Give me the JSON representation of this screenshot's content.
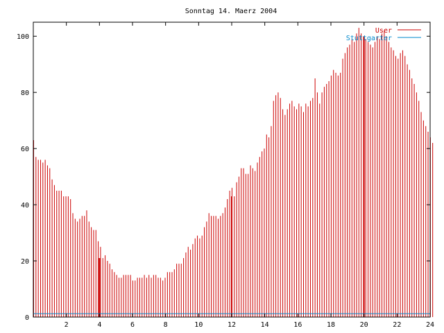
{
  "chart_data": {
    "type": "bar",
    "title": "Sonntag 14. Maerz 2004",
    "xlabel": "",
    "ylabel": "",
    "xlim": [
      0,
      24
    ],
    "ylim": [
      0,
      105
    ],
    "grid": false,
    "legend_position": "top-right",
    "x_ticks": [
      2,
      4,
      6,
      8,
      10,
      12,
      14,
      16,
      18,
      20,
      22,
      24
    ],
    "x_tick_labels": [
      "2",
      "4",
      "6",
      "8",
      "10",
      "12",
      "14",
      "16",
      "18",
      "20",
      "22",
      "24"
    ],
    "y_ticks": [
      0,
      20,
      40,
      60,
      80,
      100
    ],
    "y_tick_labels": [
      "0",
      "20",
      "40",
      "60",
      "80",
      "100"
    ],
    "series": [
      {
        "name": "User",
        "color": "#cc0000",
        "values": [
          63,
          57,
          56,
          56,
          55,
          56,
          54,
          53,
          49,
          47,
          45,
          45,
          45,
          43,
          43,
          43,
          42,
          37,
          35,
          34,
          35,
          36,
          36,
          38,
          34,
          32,
          31,
          31,
          27,
          25,
          21,
          22,
          20,
          19,
          17,
          16,
          15,
          14,
          14,
          15,
          15,
          15,
          15,
          13,
          13,
          14,
          14,
          14,
          15,
          14,
          15,
          14,
          15,
          15,
          14,
          14,
          13,
          14,
          16,
          16,
          16,
          17,
          19,
          19,
          19,
          21,
          23,
          25,
          24,
          26,
          28,
          29,
          28,
          29,
          32,
          34,
          37,
          36,
          36,
          36,
          35,
          36,
          37,
          39,
          42,
          45,
          46,
          43,
          48,
          50,
          53,
          53,
          51,
          51,
          54,
          53,
          52,
          55,
          57,
          59,
          60,
          65,
          64,
          68,
          77,
          79,
          80,
          78,
          74,
          72,
          74,
          76,
          77,
          75,
          74,
          76,
          75,
          73,
          76,
          75,
          77,
          78,
          85,
          80,
          76,
          80,
          82,
          83,
          84,
          86,
          88,
          87,
          86,
          87,
          92,
          94,
          96,
          97,
          99,
          98,
          101,
          103,
          101,
          100,
          99,
          98,
          97,
          96,
          98,
          100,
          99,
          101,
          102,
          100,
          98,
          96,
          95,
          93,
          92,
          94,
          95,
          93,
          90,
          88,
          85,
          83,
          80,
          77,
          73,
          70,
          68,
          66,
          64,
          62
        ],
        "data_labels": []
      },
      {
        "name": "Stuttgarter",
        "color": "#0088cc",
        "values": [
          1.2,
          1.2
        ]
      }
    ],
    "x_step": 0.1395,
    "highlight_bars": [
      {
        "x": 4.0,
        "value": 21
      },
      {
        "x": 12.0,
        "value": 43
      },
      {
        "x": 20.0,
        "value": 100
      }
    ],
    "legend": [
      {
        "label": "User",
        "color": "#cc0000"
      },
      {
        "label": "Stuttgarter",
        "color": "#0088cc"
      }
    ]
  }
}
